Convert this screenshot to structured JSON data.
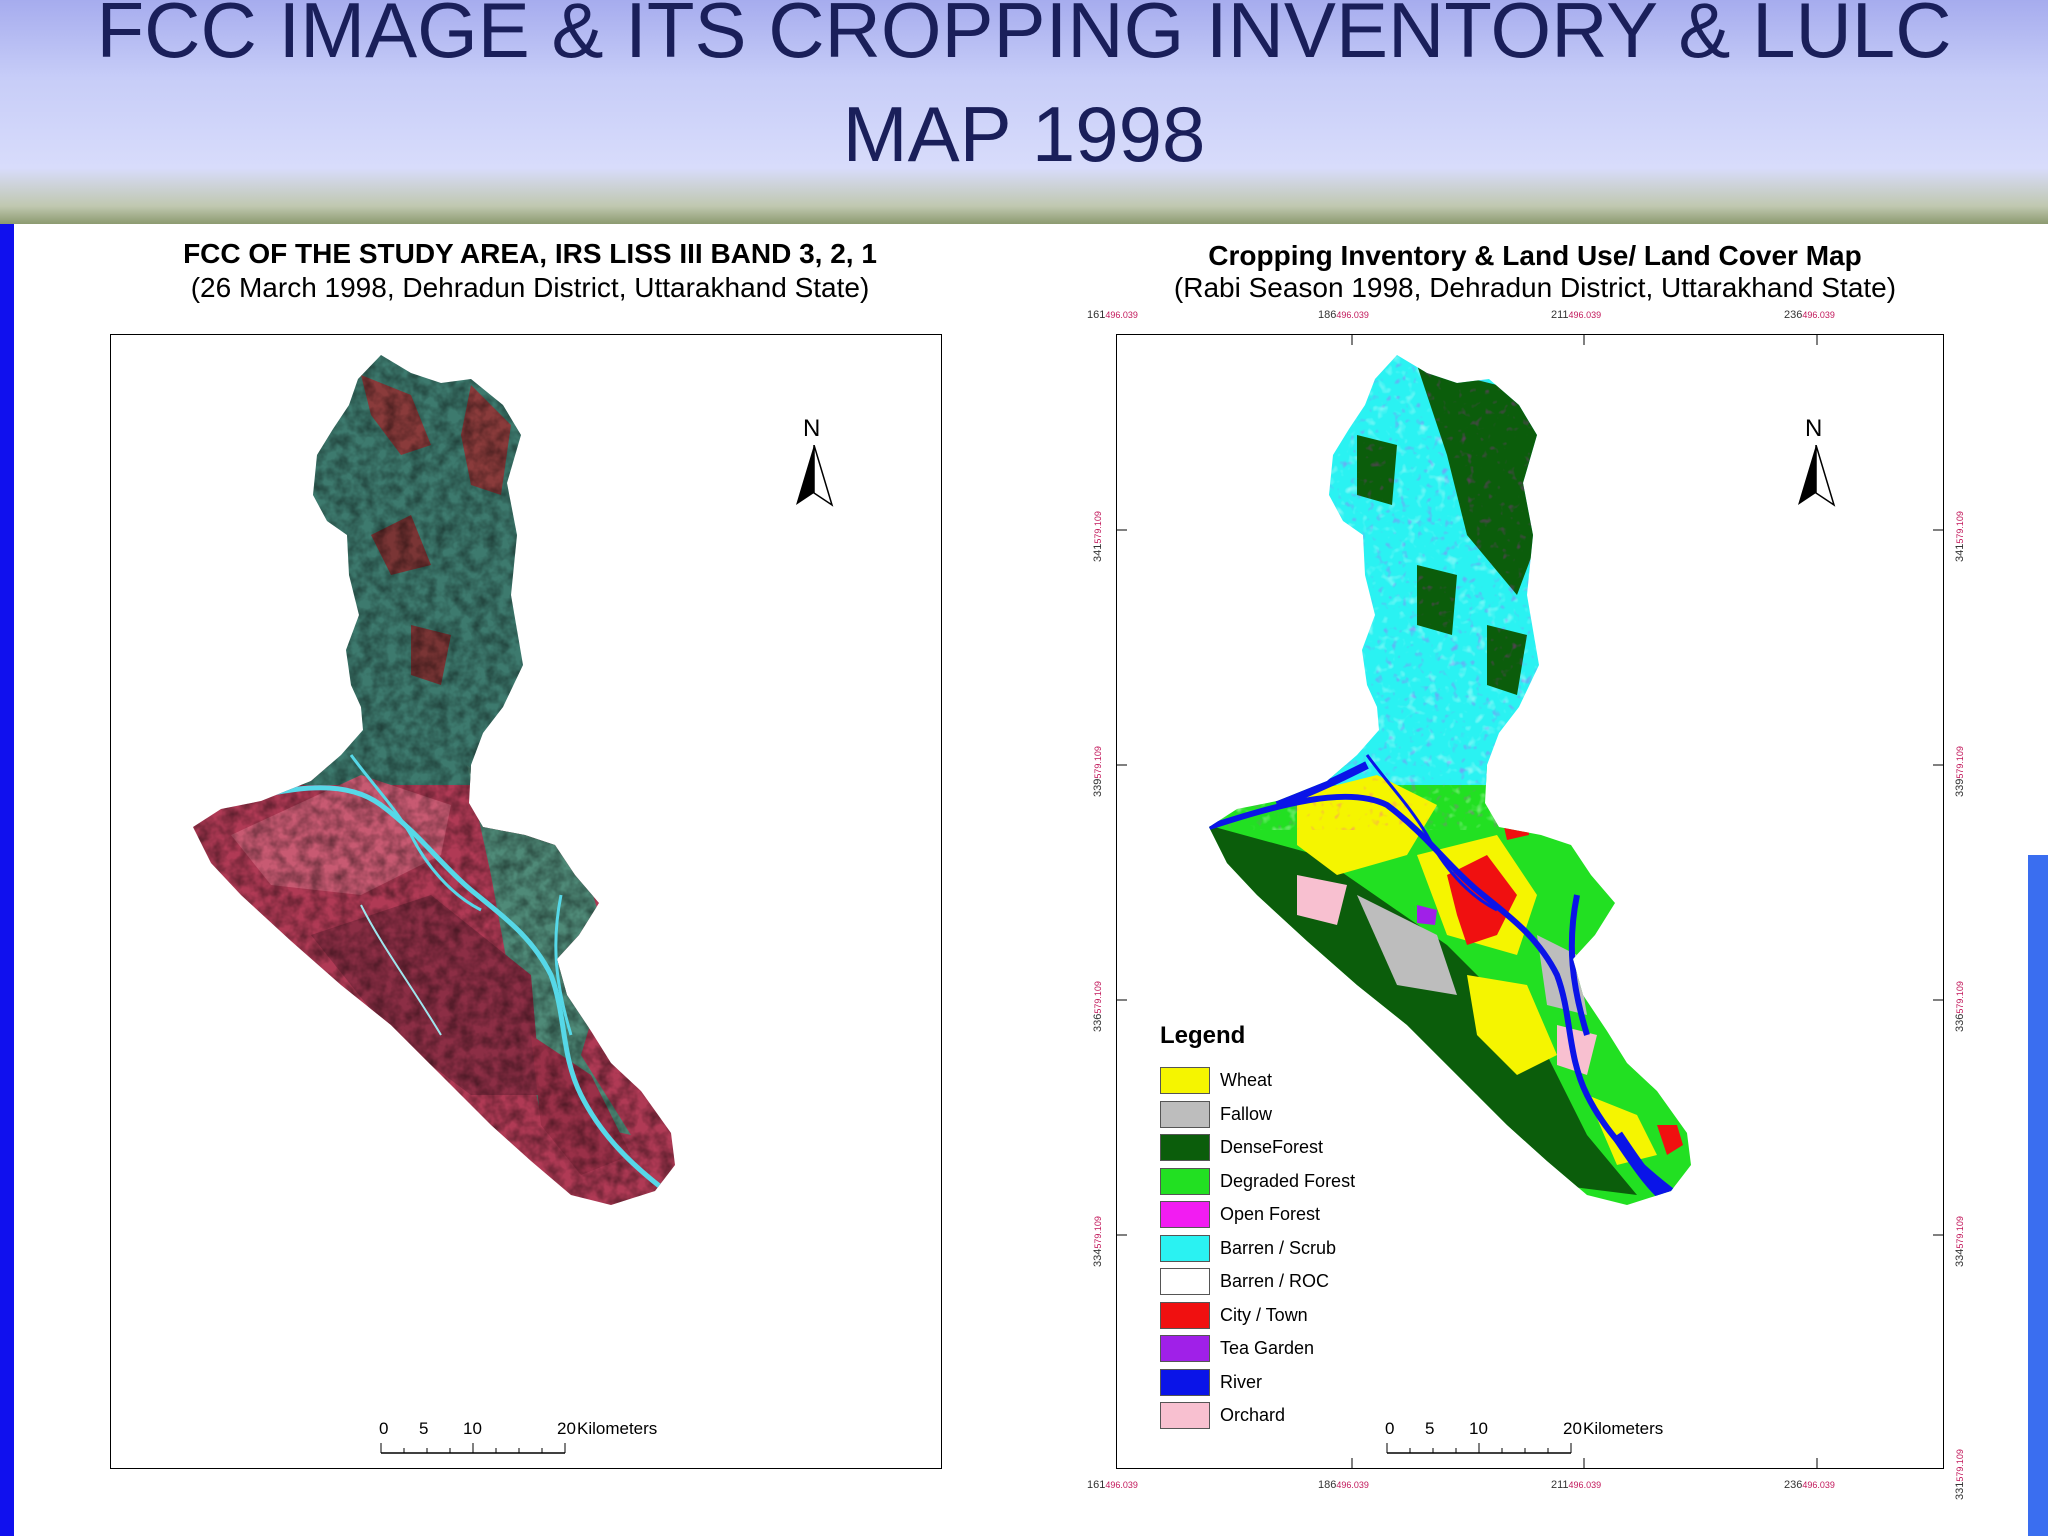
{
  "slide": {
    "title_line1": "FCC IMAGE & ITS CROPPING INVENTORY & LULC",
    "title_line2": "MAP 1998"
  },
  "left_map": {
    "title": "FCC OF THE STUDY AREA, IRS LISS III BAND 3, 2, 1",
    "subtitle": "(26 March 1998, Dehradun District, Uttarakhand State)",
    "north_label": "N",
    "scale": {
      "ticks": [
        "0",
        "5",
        "10",
        "20"
      ],
      "unit": "Kilometers"
    },
    "colors": {
      "vegetation": "#3d7a6e",
      "ridges": "#8a3b3b",
      "plains": "#b03a55",
      "river": "#56d8e8"
    }
  },
  "right_map": {
    "title": "Cropping Inventory & Land Use/ Land Cover Map",
    "subtitle": "(Rabi Season 1998, Dehradun District, Uttarakhand State)",
    "north_label": "N",
    "scale": {
      "ticks": [
        "0",
        "5",
        "10",
        "20"
      ],
      "unit": "Kilometers"
    },
    "grid_top": [
      "161",
      "186",
      "211",
      "236"
    ],
    "grid_bottom": [
      "161",
      "186",
      "211",
      "236"
    ],
    "grid_suffix": "496.039",
    "grid_side": [
      "341",
      "339",
      "336",
      "334",
      "331"
    ],
    "grid_side_suffix": "579.109",
    "legend": {
      "title": "Legend",
      "items": [
        {
          "label": "Wheat",
          "color": "#f5f500"
        },
        {
          "label": "Fallow",
          "color": "#bdbdbd"
        },
        {
          "label": "DenseForest",
          "color": "#0b5d0b"
        },
        {
          "label": "Degraded Forest",
          "color": "#22e022"
        },
        {
          "label": "Open Forest",
          "color": "#f21cf2"
        },
        {
          "label": "Barren / Scrub",
          "color": "#2af2f2"
        },
        {
          "label": "Barren / ROC",
          "color": "#ffffff"
        },
        {
          "label": "City / Town",
          "color": "#f01010"
        },
        {
          "label": "Tea Garden",
          "color": "#a020e8"
        },
        {
          "label": "River",
          "color": "#0a14e8"
        },
        {
          "label": "Orchard",
          "color": "#f8c0d0"
        }
      ]
    }
  }
}
